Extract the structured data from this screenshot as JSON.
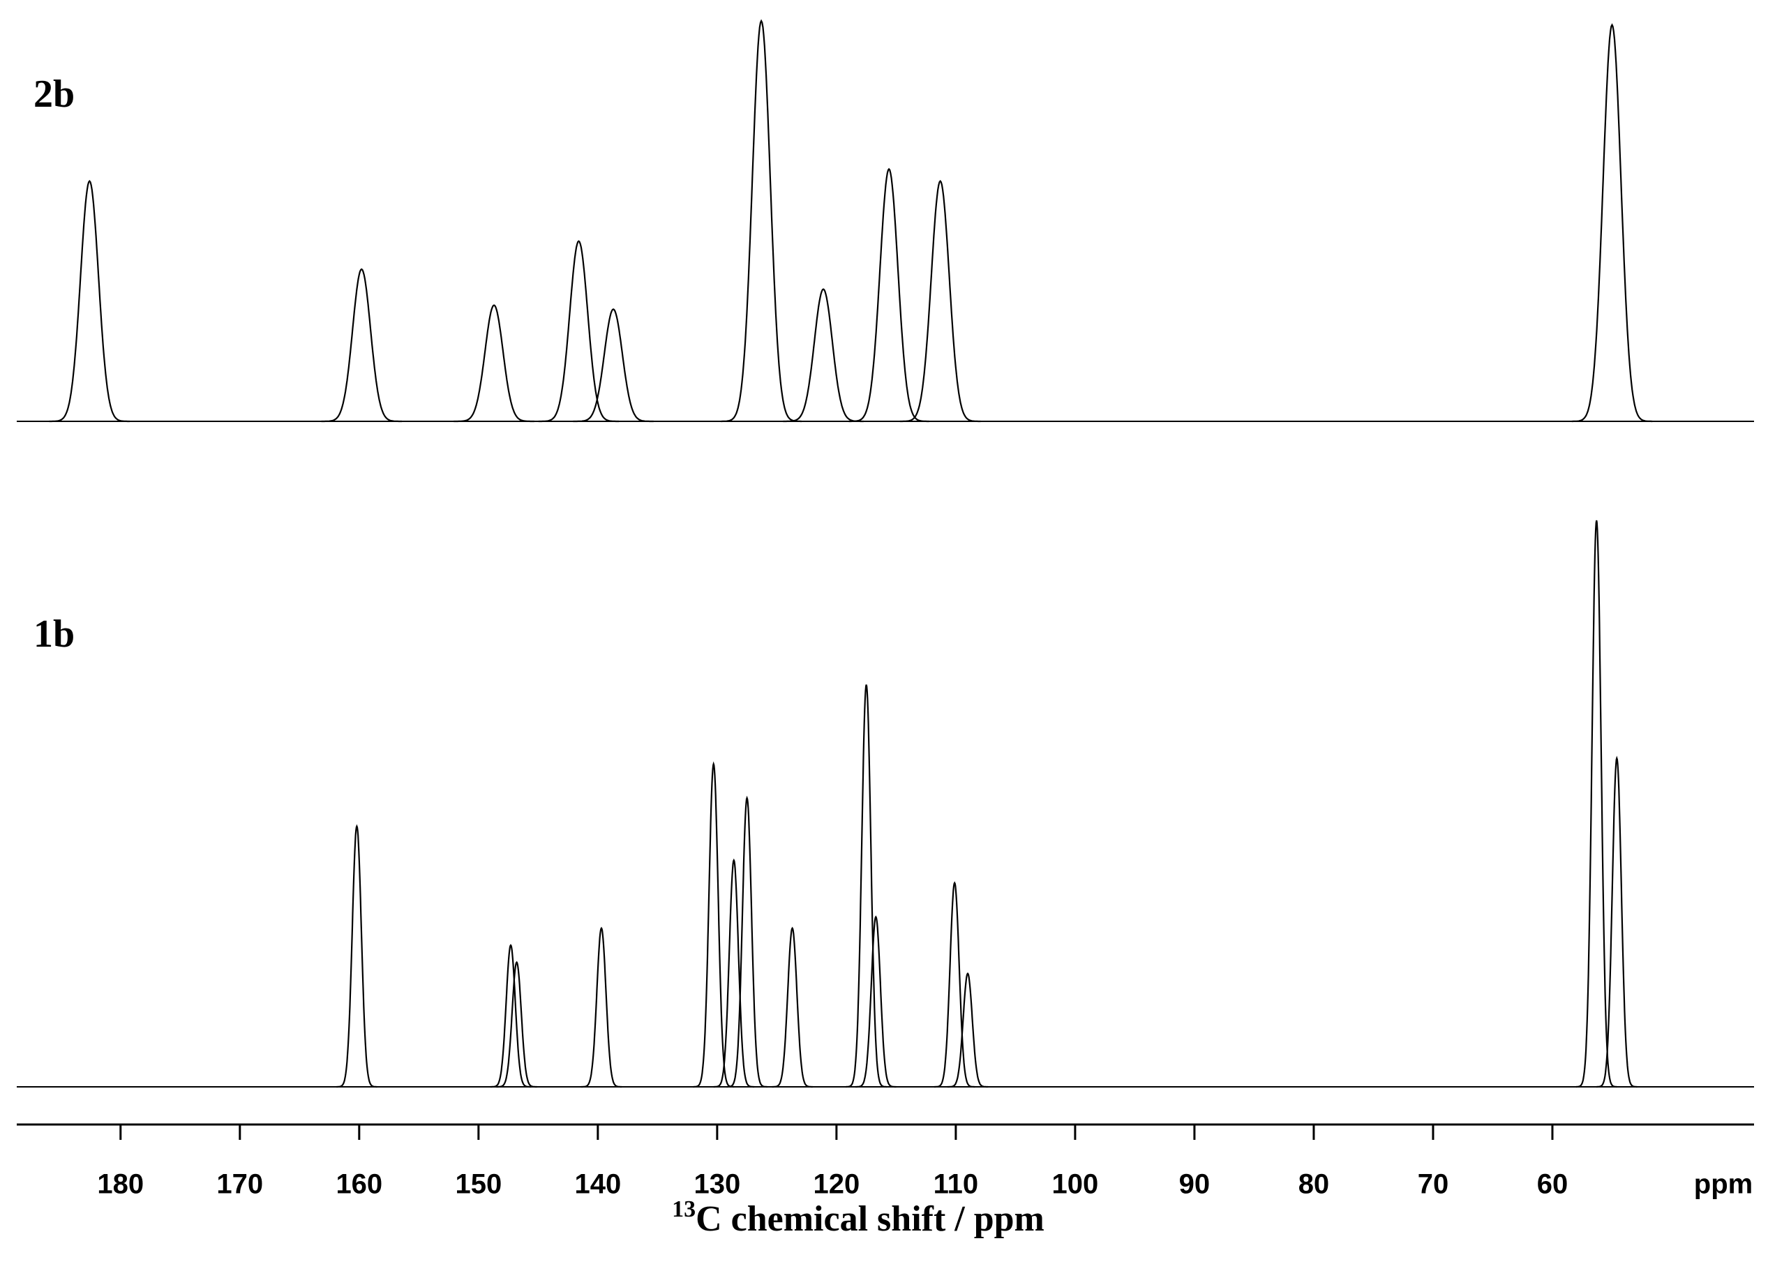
{
  "chart_data": {
    "type": "line",
    "xlabel_sup": "13",
    "xlabel": "C chemical shift / ppm",
    "unit_label": "ppm",
    "xlim": [
      188.7,
      43.1
    ],
    "xticks": [
      180,
      170,
      160,
      150,
      140,
      130,
      120,
      110,
      100,
      90,
      80,
      70,
      60
    ],
    "ylim": [
      0,
      100
    ],
    "series": [
      {
        "name": "2b",
        "color": "#000000",
        "x": [
          182.6,
          159.8,
          148.7,
          141.6,
          138.7,
          126.3,
          121.1,
          115.6,
          111.3,
          55.0
        ],
        "values": [
          60,
          38,
          29,
          45,
          28,
          100,
          33,
          63,
          60,
          99
        ]
      },
      {
        "name": "1b",
        "color": "#000000",
        "x": [
          160.2,
          147.3,
          146.8,
          139.7,
          130.3,
          128.6,
          127.5,
          123.7,
          117.5,
          116.7,
          110.1,
          109.0,
          56.3,
          54.6
        ],
        "values": [
          46,
          25,
          22,
          28,
          57,
          40,
          51,
          28,
          71,
          30,
          36,
          20,
          100,
          58
        ]
      }
    ]
  }
}
